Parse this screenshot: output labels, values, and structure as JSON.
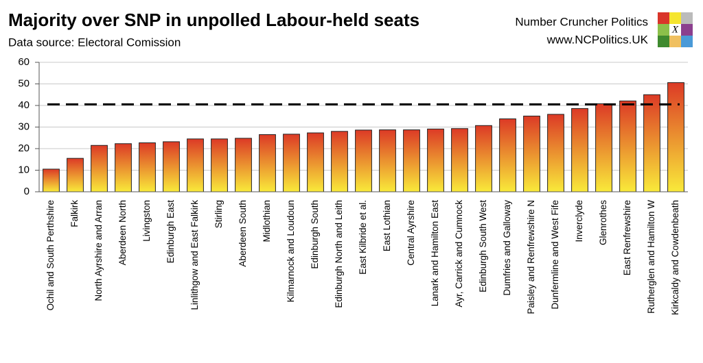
{
  "header": {
    "brand": "Number Cruncher Politics",
    "url": "www.NCPolitics.UK",
    "logo_letter": "X"
  },
  "chart_data": {
    "type": "bar",
    "title": "Majority over SNP in unpolled Labour-held seats",
    "subtitle": "Data source: Electoral Comission",
    "categories": [
      "Ochil and South Perthshire",
      "Falkirk",
      "North Ayrshire and Arran",
      "Aberdeen North",
      "Livingston",
      "Edinburgh East",
      "Linlithgow and East Falkirk",
      "Stirling",
      "Aberdeen South",
      "Midlothian",
      "Kilmarnock and Loudoun",
      "Edinburgh South",
      "Edinburgh North and Leith",
      "East Kilbride et al.",
      "East Lothian",
      "Central Ayrshire",
      "Lanark and Hamilton East",
      "Ayr, Carrick and Cumnock",
      "Edinburgh South West",
      "Dumfries and Galloway",
      "Paisley and Renfrewshire N",
      "Dunfermline and West Fife",
      "Inverclyde",
      "Glenrothes",
      "East Renfrewshire",
      "Rutherglen and Hamilton W",
      "Kirkcaldy and Cowdenbeath"
    ],
    "values": [
      10.5,
      15.5,
      21.5,
      22.3,
      22.7,
      23.2,
      24.5,
      24.5,
      24.8,
      26.5,
      26.7,
      27.3,
      28,
      28.6,
      28.7,
      28.7,
      29.1,
      29.3,
      30.7,
      33.8,
      35.1,
      35.9,
      38.6,
      40.8,
      42.1,
      45,
      50.6
    ],
    "gradient": [
      "#dc3a26",
      "#f9ea3a"
    ],
    "reference_line": 40.5,
    "ylim": [
      0,
      60
    ],
    "yticks": [
      0,
      10,
      20,
      30,
      40,
      50,
      60
    ],
    "grid": true
  }
}
